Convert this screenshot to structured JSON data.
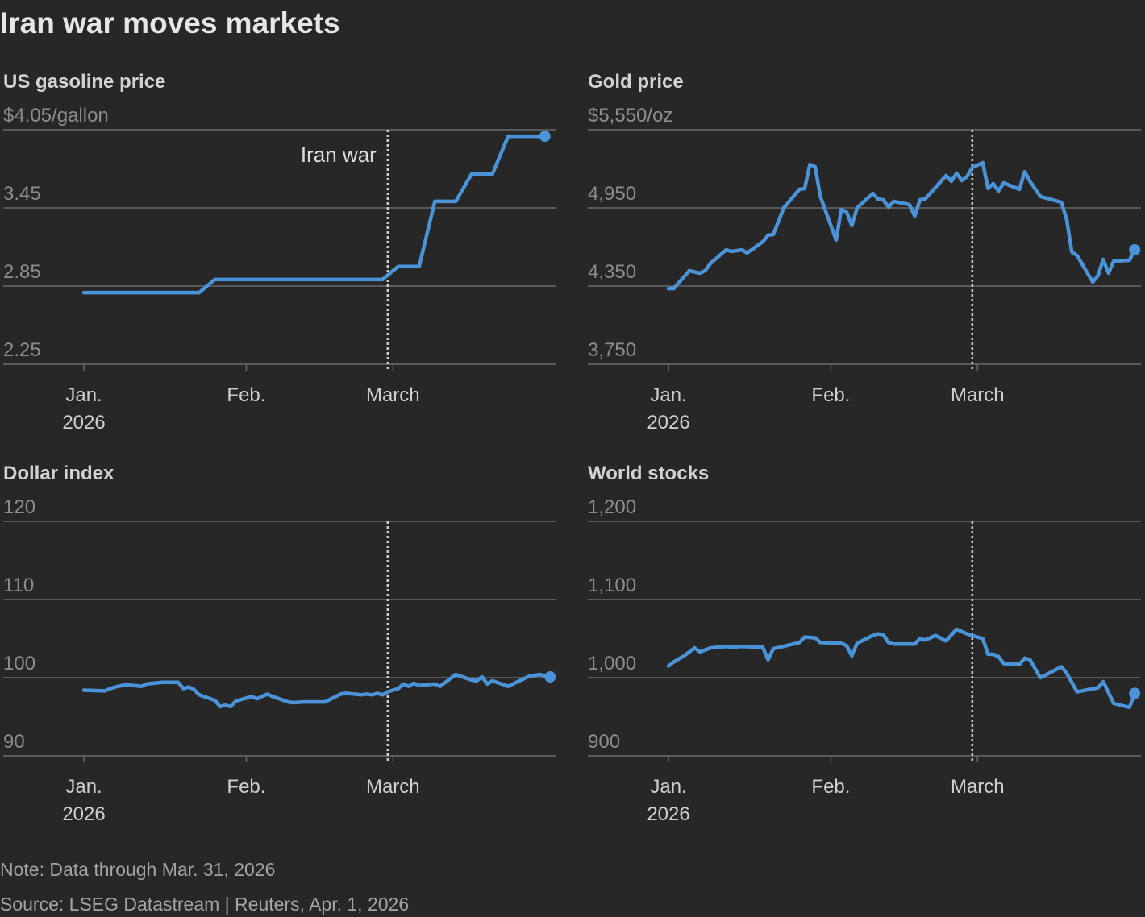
{
  "title": "Iran war moves markets",
  "note": "Note: Data through Mar. 31, 2026",
  "source": "Source: LSEG Datastream | Reuters, Apr. 1, 2026",
  "chart_data": [
    {
      "type": "line",
      "title": "US gasoline price",
      "color": "#4b93d8",
      "grid": true,
      "annotation": "Iran war",
      "event_x": 59,
      "x": [
        1,
        23,
        26,
        58,
        61,
        65,
        68,
        72,
        75,
        79,
        82,
        89
      ],
      "values": [
        2.8,
        2.8,
        2.9,
        2.9,
        3.0,
        3.0,
        3.5,
        3.5,
        3.71,
        3.71,
        4.0,
        4.0
      ],
      "xlim": [
        -14.4,
        91.2
      ],
      "xticks": [
        {
          "value": 1,
          "label": "Jan.\n2026"
        },
        {
          "value": 32,
          "label": "Feb."
        },
        {
          "value": 60,
          "label": "March"
        }
      ],
      "ylim": [
        2.25,
        4.05
      ],
      "yticks": [
        2.25,
        2.85,
        3.45,
        {
          "value": 4.05,
          "label": "$4.05/gallon"
        }
      ]
    },
    {
      "type": "line",
      "title": "Gold price",
      "color": "#4b93d8",
      "grid": true,
      "event_x": 59,
      "x": [
        1,
        2,
        5,
        7,
        8,
        9,
        12,
        13,
        15,
        16,
        19,
        20,
        21,
        23,
        26,
        27,
        28,
        29,
        30,
        33,
        34,
        35,
        36,
        37,
        40,
        41,
        42,
        43,
        44,
        47,
        48,
        49,
        50,
        54,
        55,
        56,
        57,
        58,
        59,
        61,
        62,
        63,
        64,
        65,
        68,
        69,
        70,
        72,
        76,
        77,
        78,
        79,
        82,
        83,
        84,
        85,
        86,
        89,
        90
      ],
      "values": [
        4331,
        4331,
        4468,
        4449,
        4468,
        4523,
        4628,
        4616,
        4628,
        4604,
        4690,
        4740,
        4746,
        4950,
        5092,
        5099,
        5284,
        5266,
        5037,
        4703,
        4938,
        4919,
        4814,
        4950,
        5061,
        5018,
        5012,
        4956,
        5000,
        4975,
        4888,
        5012,
        5018,
        5198,
        5154,
        5216,
        5160,
        5191,
        5259,
        5297,
        5099,
        5136,
        5080,
        5142,
        5092,
        5228,
        5154,
        5037,
        4993,
        4863,
        4610,
        4585,
        4381,
        4430,
        4554,
        4449,
        4542,
        4548,
        4628
      ],
      "xlim": [
        -14.4,
        91.2
      ],
      "xticks": [
        {
          "value": 1,
          "label": "Jan.\n2026"
        },
        {
          "value": 32,
          "label": "Feb."
        },
        {
          "value": 60,
          "label": "March"
        }
      ],
      "ylim": [
        3750,
        5550
      ],
      "yticks": [
        {
          "value": 3750,
          "label": "3,750"
        },
        {
          "value": 4350,
          "label": "4,350"
        },
        {
          "value": 4950,
          "label": "4,950"
        },
        {
          "value": 5550,
          "label": "$5,550/oz"
        }
      ]
    },
    {
      "type": "line",
      "title": "Dollar index",
      "color": "#4b93d8",
      "grid": true,
      "event_x": 59,
      "x": [
        1,
        5,
        6,
        7,
        9,
        12,
        13,
        16,
        19,
        20,
        21,
        22,
        23,
        26,
        27,
        28,
        29,
        30,
        33,
        34,
        36,
        37,
        40,
        41,
        43,
        47,
        50,
        51,
        54,
        55,
        56,
        57,
        58,
        59,
        61,
        62,
        63,
        64,
        65,
        68,
        69,
        72,
        75,
        76,
        77,
        78,
        79,
        82,
        86,
        88,
        90
      ],
      "values": [
        98.4,
        98.3,
        98.6,
        98.8,
        99.1,
        98.9,
        99.2,
        99.4,
        99.4,
        98.6,
        98.8,
        98.5,
        97.8,
        97.1,
        96.3,
        96.5,
        96.3,
        97.0,
        97.6,
        97.3,
        97.9,
        97.6,
        96.9,
        96.8,
        96.9,
        96.9,
        97.9,
        98.0,
        97.8,
        97.9,
        97.8,
        98.0,
        97.8,
        98.2,
        98.6,
        99.2,
        98.9,
        99.3,
        99.0,
        99.2,
        98.9,
        100.4,
        99.7,
        99.6,
        100.1,
        99.2,
        99.6,
        98.9,
        100.2,
        100.4,
        100.1
      ],
      "xlim": [
        -14.4,
        91.2
      ],
      "xticks": [
        {
          "value": 1,
          "label": "Jan.\n2026"
        },
        {
          "value": 32,
          "label": "Feb."
        },
        {
          "value": 60,
          "label": "March"
        }
      ],
      "ylim": [
        90,
        120
      ],
      "yticks": [
        90,
        100,
        110,
        120
      ]
    },
    {
      "type": "line",
      "title": "World stocks",
      "color": "#4b93d8",
      "grid": true,
      "event_x": 59,
      "x": [
        1,
        2,
        4,
        6,
        7,
        9,
        12,
        13,
        15,
        19,
        20,
        21,
        26,
        27,
        29,
        30,
        34,
        35,
        36,
        37,
        40,
        41,
        42,
        43,
        44,
        48,
        49,
        50,
        52,
        54,
        56,
        58,
        61,
        62,
        63,
        64,
        65,
        68,
        69,
        70,
        72,
        76,
        77,
        79,
        83,
        84,
        86,
        89,
        90
      ],
      "values": [
        1015,
        1020,
        1028,
        1038,
        1033,
        1038,
        1040,
        1039,
        1040,
        1039,
        1023,
        1037,
        1045,
        1052,
        1051,
        1045,
        1044,
        1041,
        1028,
        1044,
        1054,
        1056,
        1055,
        1045,
        1043,
        1043,
        1050,
        1048,
        1054,
        1047,
        1062,
        1056,
        1050,
        1030,
        1030,
        1027,
        1018,
        1017,
        1025,
        1023,
        1000,
        1014,
        1006,
        982,
        987,
        995,
        967,
        962,
        980
      ],
      "xlim": [
        -14.4,
        91.2
      ],
      "xticks": [
        {
          "value": 1,
          "label": "Jan.\n2026"
        },
        {
          "value": 32,
          "label": "Feb."
        },
        {
          "value": 60,
          "label": "March"
        }
      ],
      "ylim": [
        900,
        1200
      ],
      "yticks": [
        900,
        {
          "value": 1000,
          "label": "1,000"
        },
        {
          "value": 1100,
          "label": "1,100"
        },
        {
          "value": 1200,
          "label": "1,200"
        }
      ]
    }
  ]
}
